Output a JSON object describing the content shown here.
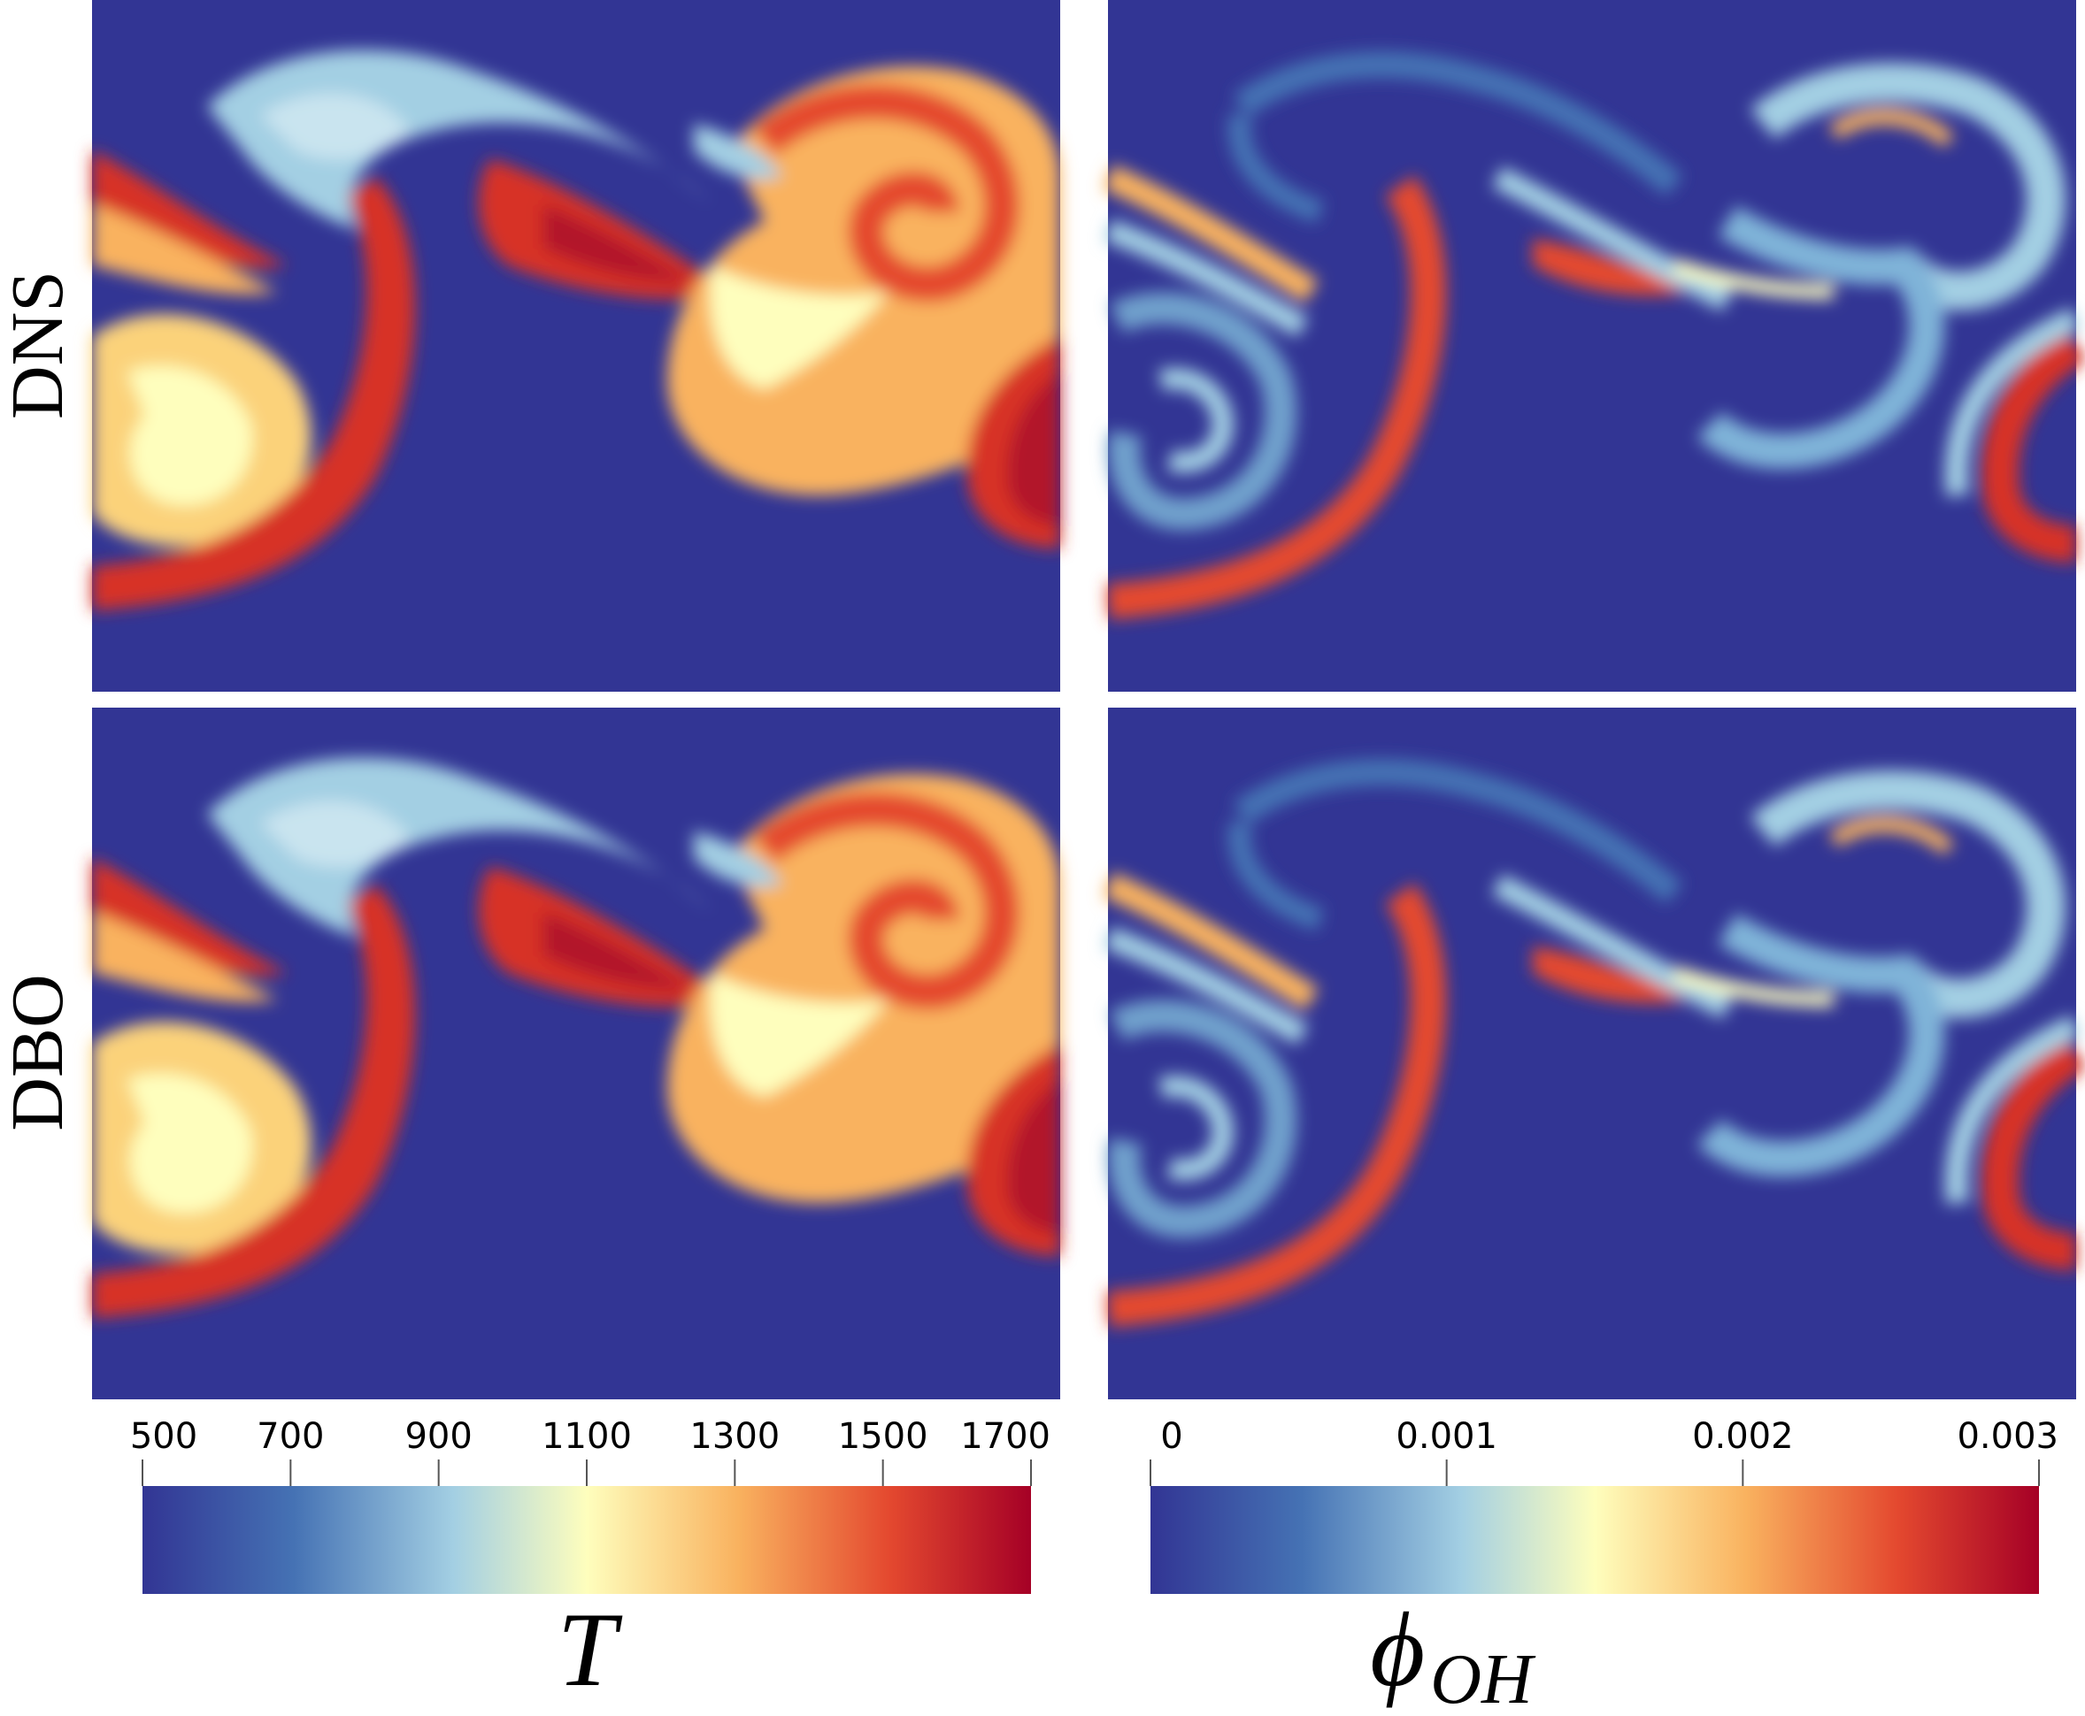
{
  "figure": {
    "row_labels": [
      "DNS",
      "DBO"
    ],
    "colorbars": [
      {
        "title": "T",
        "ticks": [
          "500",
          "700",
          "900",
          "1100",
          "1300",
          "1500",
          "1700"
        ]
      },
      {
        "title": "ϕ",
        "title_sub": "OH",
        "ticks": [
          "0",
          "0.001",
          "0.002",
          "0.003"
        ]
      }
    ]
  },
  "colors": {
    "background_blue": "#323594",
    "colormap": [
      "#323594",
      "#4572b4",
      "#a3cfe3",
      "#fefebd",
      "#f9b25f",
      "#e4492f",
      "#a50026"
    ]
  },
  "chart_data": [
    {
      "type": "heatmap",
      "row": "DNS",
      "field": "T",
      "range": [
        500,
        1700
      ],
      "colorbar_ticks": [
        500,
        700,
        900,
        1100,
        1300,
        1500,
        1700
      ]
    },
    {
      "type": "heatmap",
      "row": "DNS",
      "field": "phi_OH",
      "range": [
        0,
        0.003
      ],
      "colorbar_ticks": [
        0,
        0.001,
        0.002,
        0.003
      ]
    },
    {
      "type": "heatmap",
      "row": "DBO",
      "field": "T",
      "range": [
        500,
        1700
      ],
      "colorbar_ticks": [
        500,
        700,
        900,
        1100,
        1300,
        1500,
        1700
      ]
    },
    {
      "type": "heatmap",
      "row": "DBO",
      "field": "phi_OH",
      "range": [
        0,
        0.003
      ],
      "colorbar_ticks": [
        0,
        0.001,
        0.002,
        0.003
      ]
    }
  ]
}
